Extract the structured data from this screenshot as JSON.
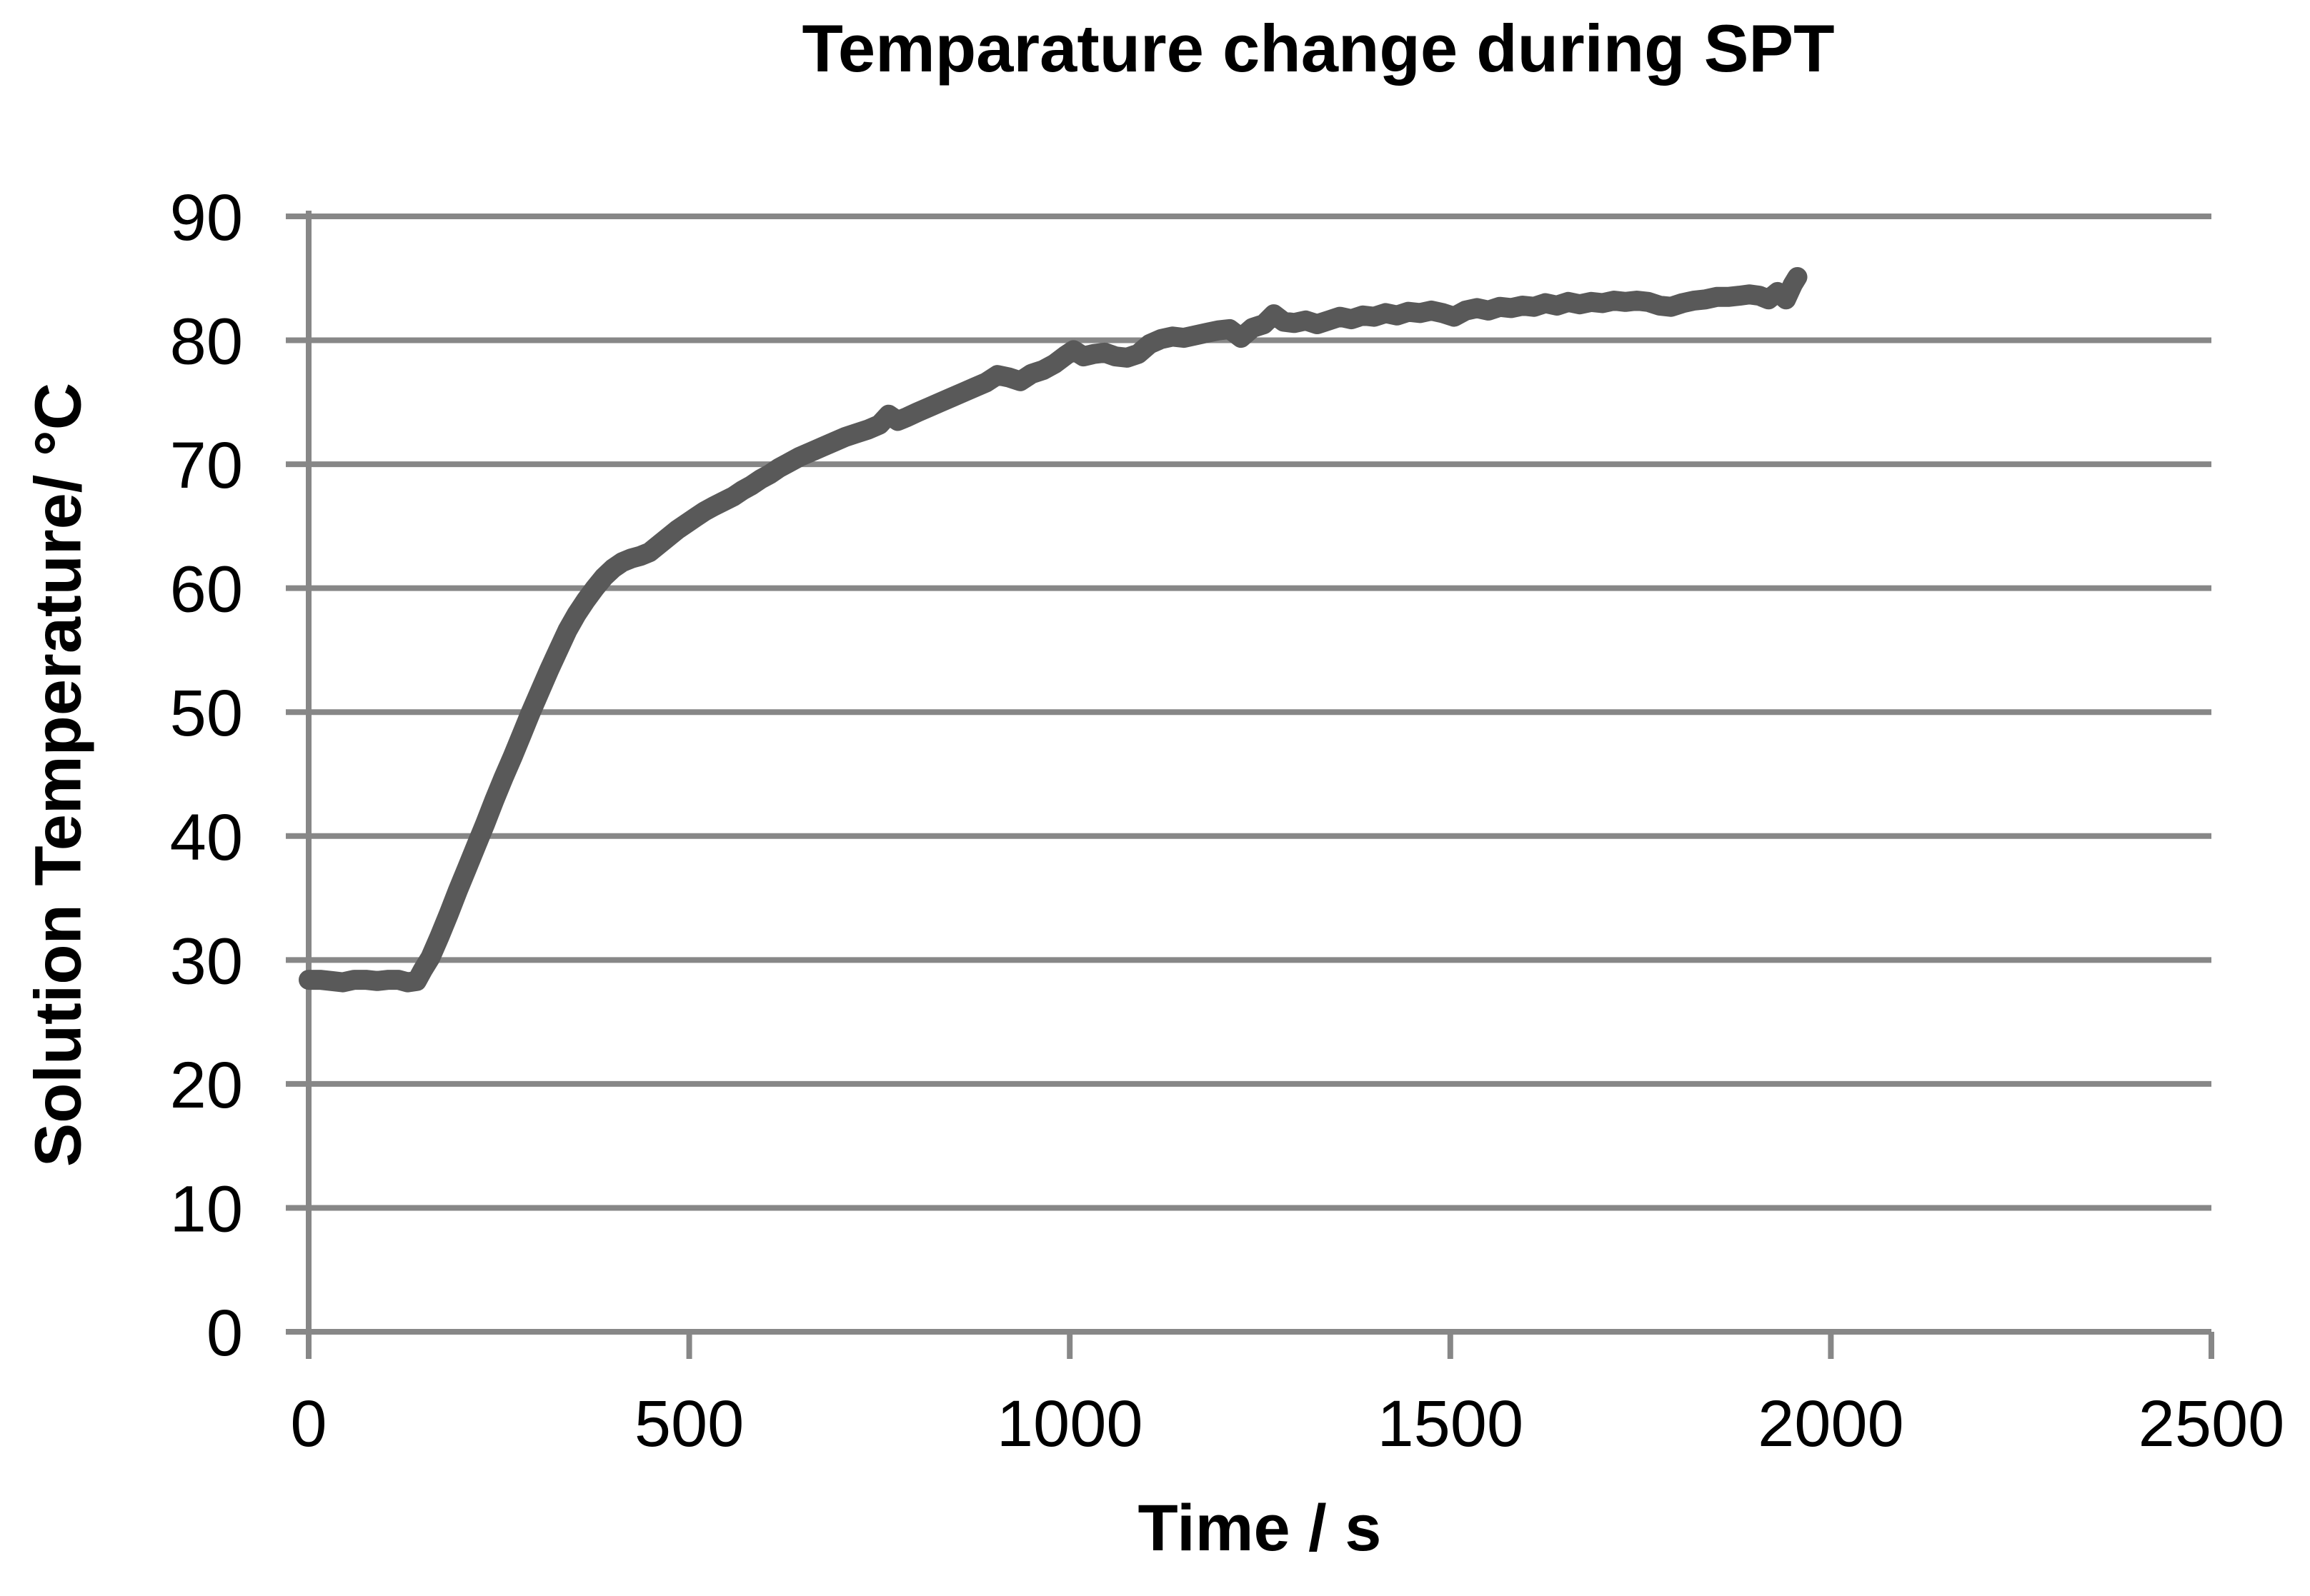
{
  "chart_data": {
    "type": "line",
    "title": "Temparature change during SPT",
    "xlabel": "Time / s",
    "ylabel": "Solution Temperature/ °C",
    "xlim": [
      0,
      2500
    ],
    "ylim": [
      0,
      90
    ],
    "x_ticks": [
      0,
      500,
      1000,
      1500,
      2000,
      2500
    ],
    "y_ticks": [
      0,
      10,
      20,
      30,
      40,
      50,
      60,
      70,
      80,
      90
    ],
    "grid": "horizontal-only",
    "legend": "none",
    "background_color": "#ffffff",
    "line_color": "#595959",
    "grid_color": "#878787",
    "text_color": "#000000",
    "series": [
      {
        "name": "Solution temperature",
        "points": [
          [
            0,
            28.4
          ],
          [
            15,
            28.4
          ],
          [
            30,
            28.3
          ],
          [
            45,
            28.2
          ],
          [
            60,
            28.4
          ],
          [
            75,
            28.4
          ],
          [
            90,
            28.3
          ],
          [
            105,
            28.4
          ],
          [
            118,
            28.4
          ],
          [
            130,
            28.2
          ],
          [
            142,
            28.3
          ],
          [
            150,
            29.2
          ],
          [
            160,
            30.2
          ],
          [
            172,
            31.9
          ],
          [
            184,
            33.7
          ],
          [
            196,
            35.6
          ],
          [
            208,
            37.4
          ],
          [
            220,
            39.2
          ],
          [
            232,
            41.0
          ],
          [
            244,
            42.9
          ],
          [
            256,
            44.7
          ],
          [
            268,
            46.4
          ],
          [
            280,
            48.2
          ],
          [
            292,
            50.0
          ],
          [
            304,
            51.7
          ],
          [
            316,
            53.4
          ],
          [
            328,
            55.0
          ],
          [
            340,
            56.6
          ],
          [
            352,
            57.9
          ],
          [
            364,
            59.0
          ],
          [
            376,
            60.0
          ],
          [
            388,
            60.9
          ],
          [
            400,
            61.6
          ],
          [
            412,
            62.1
          ],
          [
            424,
            62.4
          ],
          [
            436,
            62.6
          ],
          [
            448,
            62.9
          ],
          [
            460,
            63.5
          ],
          [
            472,
            64.1
          ],
          [
            484,
            64.7
          ],
          [
            496,
            65.2
          ],
          [
            508,
            65.7
          ],
          [
            520,
            66.2
          ],
          [
            532,
            66.6
          ],
          [
            545,
            67.0
          ],
          [
            558,
            67.4
          ],
          [
            570,
            67.9
          ],
          [
            582,
            68.3
          ],
          [
            594,
            68.8
          ],
          [
            606,
            69.2
          ],
          [
            618,
            69.7
          ],
          [
            630,
            70.1
          ],
          [
            645,
            70.6
          ],
          [
            660,
            71.0
          ],
          [
            675,
            71.4
          ],
          [
            690,
            71.8
          ],
          [
            705,
            72.2
          ],
          [
            720,
            72.5
          ],
          [
            735,
            72.8
          ],
          [
            750,
            73.2
          ],
          [
            762,
            74.0
          ],
          [
            774,
            73.5
          ],
          [
            786,
            73.8
          ],
          [
            800,
            74.2
          ],
          [
            815,
            74.6
          ],
          [
            830,
            75.0
          ],
          [
            845,
            75.4
          ],
          [
            860,
            75.8
          ],
          [
            875,
            76.2
          ],
          [
            890,
            76.6
          ],
          [
            905,
            77.2
          ],
          [
            920,
            77.0
          ],
          [
            935,
            76.7
          ],
          [
            950,
            77.3
          ],
          [
            965,
            77.6
          ],
          [
            980,
            78.1
          ],
          [
            995,
            78.8
          ],
          [
            1005,
            79.2
          ],
          [
            1018,
            78.7
          ],
          [
            1032,
            78.9
          ],
          [
            1046,
            79.0
          ],
          [
            1060,
            78.7
          ],
          [
            1075,
            78.6
          ],
          [
            1090,
            78.9
          ],
          [
            1105,
            79.7
          ],
          [
            1120,
            80.1
          ],
          [
            1135,
            80.3
          ],
          [
            1150,
            80.2
          ],
          [
            1165,
            80.4
          ],
          [
            1180,
            80.6
          ],
          [
            1195,
            80.8
          ],
          [
            1210,
            80.9
          ],
          [
            1225,
            80.2
          ],
          [
            1240,
            81.0
          ],
          [
            1255,
            81.3
          ],
          [
            1268,
            82.1
          ],
          [
            1281,
            81.5
          ],
          [
            1295,
            81.4
          ],
          [
            1310,
            81.6
          ],
          [
            1325,
            81.3
          ],
          [
            1340,
            81.6
          ],
          [
            1355,
            81.9
          ],
          [
            1370,
            81.7
          ],
          [
            1385,
            82.0
          ],
          [
            1400,
            81.9
          ],
          [
            1415,
            82.2
          ],
          [
            1430,
            82.0
          ],
          [
            1445,
            82.3
          ],
          [
            1460,
            82.2
          ],
          [
            1475,
            82.4
          ],
          [
            1490,
            82.2
          ],
          [
            1505,
            81.9
          ],
          [
            1520,
            82.4
          ],
          [
            1535,
            82.6
          ],
          [
            1550,
            82.4
          ],
          [
            1565,
            82.7
          ],
          [
            1580,
            82.6
          ],
          [
            1595,
            82.8
          ],
          [
            1610,
            82.7
          ],
          [
            1625,
            83.0
          ],
          [
            1640,
            82.8
          ],
          [
            1655,
            83.1
          ],
          [
            1670,
            82.9
          ],
          [
            1685,
            83.1
          ],
          [
            1700,
            83.0
          ],
          [
            1715,
            83.2
          ],
          [
            1730,
            83.1
          ],
          [
            1745,
            83.2
          ],
          [
            1760,
            83.1
          ],
          [
            1775,
            82.8
          ],
          [
            1790,
            82.7
          ],
          [
            1805,
            83.0
          ],
          [
            1820,
            83.2
          ],
          [
            1835,
            83.3
          ],
          [
            1850,
            83.5
          ],
          [
            1865,
            83.5
          ],
          [
            1880,
            83.6
          ],
          [
            1893,
            83.7
          ],
          [
            1906,
            83.6
          ],
          [
            1918,
            83.3
          ],
          [
            1930,
            83.9
          ],
          [
            1941,
            83.3
          ],
          [
            1950,
            84.5
          ],
          [
            1956,
            85.1
          ]
        ]
      }
    ]
  }
}
